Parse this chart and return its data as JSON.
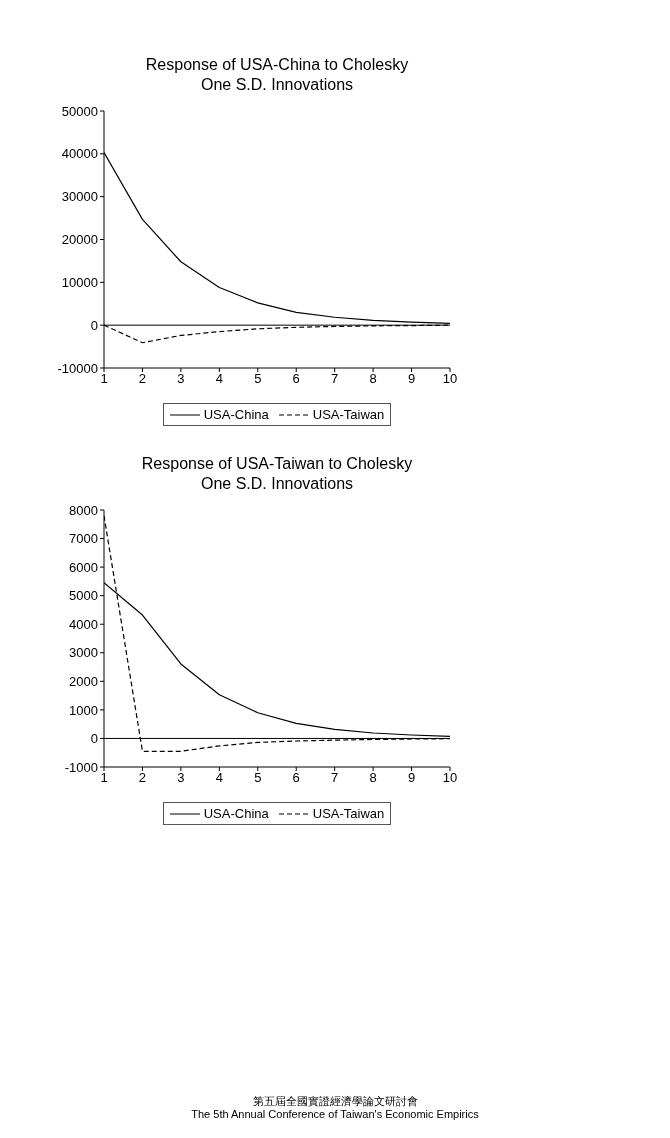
{
  "chart_data": [
    {
      "type": "line",
      "title": "Response of USA-China to Cholesky\nOne S.D. Innovations",
      "x": [
        1,
        2,
        3,
        4,
        5,
        6,
        7,
        8,
        9,
        10
      ],
      "xlim": [
        1,
        10
      ],
      "xticks": [
        1,
        2,
        3,
        4,
        5,
        6,
        7,
        8,
        9,
        10
      ],
      "ylim": [
        -10000,
        50000
      ],
      "yticks": [
        -10000,
        0,
        10000,
        20000,
        30000,
        40000,
        50000
      ],
      "grid": false,
      "legend": "bottom",
      "ref_lines": [
        {
          "axis": "y",
          "value": 0,
          "color": "#000000"
        }
      ],
      "series": [
        {
          "name": "USA-China",
          "color": "#000000",
          "line_style": "solid",
          "values": [
            40300,
            24700,
            14800,
            8800,
            5200,
            3000,
            1850,
            1100,
            700,
            400
          ]
        },
        {
          "name": "USA-Taiwan",
          "color": "#000000",
          "line_style": "dashed",
          "values": [
            0,
            -4100,
            -2400,
            -1500,
            -850,
            -500,
            -300,
            -150,
            -100,
            0
          ]
        }
      ]
    },
    {
      "type": "line",
      "title": "Response of USA-Taiwan to Cholesky\nOne S.D. Innovations",
      "x": [
        1,
        2,
        3,
        4,
        5,
        6,
        7,
        8,
        9,
        10
      ],
      "xlim": [
        1,
        10
      ],
      "xticks": [
        1,
        2,
        3,
        4,
        5,
        6,
        7,
        8,
        9,
        10
      ],
      "ylim": [
        -1000,
        8000
      ],
      "yticks": [
        -1000,
        0,
        1000,
        2000,
        3000,
        4000,
        5000,
        6000,
        7000,
        8000
      ],
      "grid": false,
      "legend": "bottom",
      "ref_lines": [
        {
          "axis": "y",
          "value": 0,
          "color": "#000000"
        }
      ],
      "annotations": [
        "第五屆全國實證經濟學論文研討會",
        "The 5th Annual Conference of Taiwan's Economic Empirics"
      ],
      "series": [
        {
          "name": "USA-China",
          "color": "#000000",
          "line_style": "solid",
          "values": [
            5450,
            4320,
            2610,
            1530,
            900,
            530,
            320,
            190,
            120,
            70
          ]
        },
        {
          "name": "USA-Taiwan",
          "color": "#000000",
          "line_style": "dashed",
          "values": [
            7800,
            -450,
            -450,
            -260,
            -140,
            -90,
            -60,
            -35,
            -20,
            -10
          ]
        }
      ]
    }
  ]
}
